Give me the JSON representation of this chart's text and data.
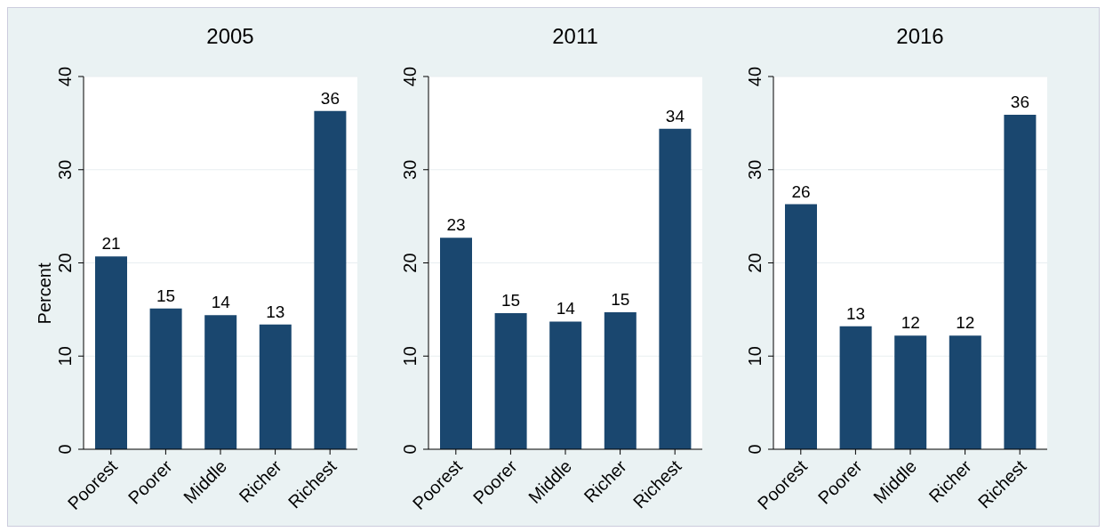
{
  "chart_data": [
    {
      "type": "bar",
      "title": "2005",
      "ylabel": "Percent",
      "categories": [
        "Poorest",
        "Poorer",
        "Middle",
        "Richer",
        "Richest"
      ],
      "values": [
        20.7,
        15.1,
        14.4,
        13.4,
        36.3
      ],
      "value_labels": [
        "21",
        "15",
        "14",
        "13",
        "36"
      ],
      "color": "#1a476f",
      "ylim": [
        0,
        40
      ],
      "yticks": [
        0,
        10,
        20,
        30,
        40
      ],
      "grid": "y"
    },
    {
      "type": "bar",
      "title": "2011",
      "categories": [
        "Poorest",
        "Poorer",
        "Middle",
        "Richer",
        "Richest"
      ],
      "values": [
        22.7,
        14.6,
        13.7,
        14.7,
        34.4
      ],
      "value_labels": [
        "23",
        "15",
        "14",
        "15",
        "34"
      ],
      "color": "#1a476f",
      "ylim": [
        0,
        40
      ],
      "yticks": [
        0,
        10,
        20,
        30,
        40
      ],
      "grid": "y"
    },
    {
      "type": "bar",
      "title": "2016",
      "categories": [
        "Poorest",
        "Poorer",
        "Middle",
        "Richer",
        "Richest"
      ],
      "values": [
        26.3,
        13.2,
        12.2,
        12.2,
        35.9
      ],
      "value_labels": [
        "26",
        "13",
        "12",
        "12",
        "36"
      ],
      "color": "#1a476f",
      "ylim": [
        0,
        40
      ],
      "yticks": [
        0,
        10,
        20,
        30,
        40
      ],
      "grid": "y"
    }
  ]
}
